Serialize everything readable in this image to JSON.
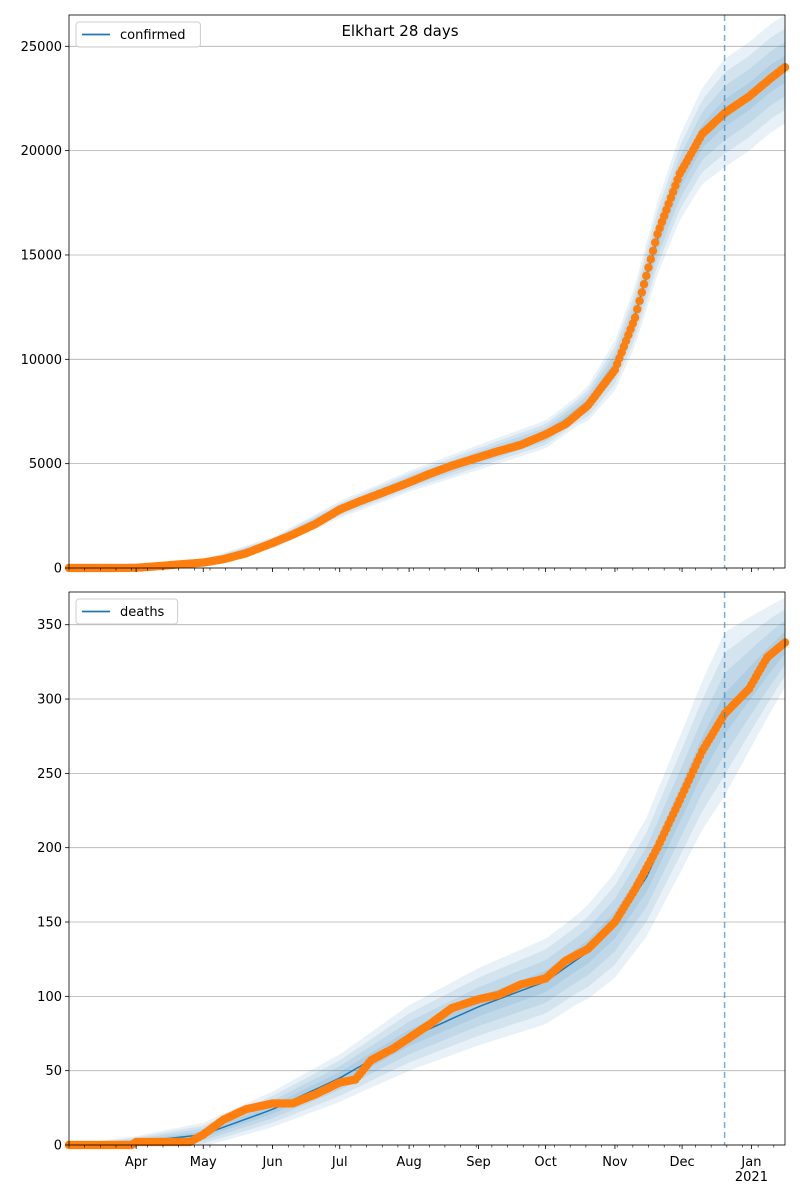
{
  "figure": {
    "title": "Elkhart 28 days"
  },
  "chart_data": [
    {
      "type": "line",
      "name": "confirmed-panel",
      "legend": [
        "confirmed"
      ],
      "legend_location": "upper-left",
      "grid": "y",
      "x_ticks": [
        "Apr",
        "May",
        "Jun",
        "Jul",
        "Aug",
        "Sep",
        "Oct",
        "Nov",
        "Dec",
        "Jan"
      ],
      "x_tick_labels_shown": false,
      "x_range": [
        "2020-03-02",
        "2021-01-16"
      ],
      "forecast_start": "2020-12-20",
      "ylim": [
        0,
        26500
      ],
      "y_ticks": [
        0,
        5000,
        10000,
        15000,
        20000,
        25000
      ],
      "observed": [
        [
          "2020-03-02",
          0
        ],
        [
          "2020-03-20",
          0
        ],
        [
          "2020-04-01",
          10
        ],
        [
          "2020-04-10",
          80
        ],
        [
          "2020-04-20",
          170
        ],
        [
          "2020-05-01",
          260
        ],
        [
          "2020-05-10",
          420
        ],
        [
          "2020-05-20",
          700
        ],
        [
          "2020-06-01",
          1200
        ],
        [
          "2020-06-10",
          1600
        ],
        [
          "2020-06-20",
          2100
        ],
        [
          "2020-07-01",
          2800
        ],
        [
          "2020-07-10",
          3200
        ],
        [
          "2020-07-20",
          3600
        ],
        [
          "2020-08-01",
          4100
        ],
        [
          "2020-08-10",
          4500
        ],
        [
          "2020-08-20",
          4900
        ],
        [
          "2020-09-01",
          5300
        ],
        [
          "2020-09-10",
          5600
        ],
        [
          "2020-09-20",
          5900
        ],
        [
          "2020-10-01",
          6400
        ],
        [
          "2020-10-10",
          6900
        ],
        [
          "2020-10-20",
          7800
        ],
        [
          "2020-11-01",
          9500
        ],
        [
          "2020-11-10",
          12000
        ],
        [
          "2020-11-20",
          16000
        ],
        [
          "2020-11-30",
          18900
        ],
        [
          "2020-12-10",
          20800
        ],
        [
          "2020-12-20",
          21800
        ],
        [
          "2020-12-31",
          22600
        ],
        [
          "2021-01-10",
          23500
        ],
        [
          "2021-01-16",
          24000
        ]
      ],
      "model_median": [
        [
          "2020-03-02",
          0
        ],
        [
          "2020-04-01",
          20
        ],
        [
          "2020-05-01",
          260
        ],
        [
          "2020-06-01",
          1200
        ],
        [
          "2020-07-01",
          2800
        ],
        [
          "2020-08-01",
          4150
        ],
        [
          "2020-09-01",
          5300
        ],
        [
          "2020-10-01",
          6400
        ],
        [
          "2020-10-20",
          7900
        ],
        [
          "2020-11-01",
          9700
        ],
        [
          "2020-11-10",
          12100
        ],
        [
          "2020-11-20",
          15800
        ],
        [
          "2020-11-30",
          18700
        ],
        [
          "2020-12-10",
          20700
        ],
        [
          "2020-12-20",
          21800
        ],
        [
          "2020-12-31",
          22600
        ],
        [
          "2021-01-10",
          23500
        ],
        [
          "2021-01-16",
          23900
        ]
      ],
      "band_outer_width": [
        [
          "2020-03-02",
          0
        ],
        [
          "2020-05-01",
          150
        ],
        [
          "2020-07-01",
          400
        ],
        [
          "2020-09-01",
          600
        ],
        [
          "2020-10-15",
          700
        ],
        [
          "2020-11-15",
          1600
        ],
        [
          "2020-12-10",
          2300
        ],
        [
          "2020-12-20",
          2600
        ],
        [
          "2021-01-16",
          2600
        ]
      ]
    },
    {
      "type": "line",
      "name": "deaths-panel",
      "legend": [
        "deaths"
      ],
      "legend_location": "upper-left",
      "grid": "y",
      "x_ticks": [
        "Apr",
        "May",
        "Jun",
        "Jul",
        "Aug",
        "Sep",
        "Oct",
        "Nov",
        "Dec",
        "Jan\n2021"
      ],
      "x_range": [
        "2020-03-02",
        "2021-01-16"
      ],
      "forecast_start": "2020-12-20",
      "ylim": [
        0,
        372
      ],
      "y_ticks": [
        0,
        50,
        100,
        150,
        200,
        250,
        300,
        350
      ],
      "observed": [
        [
          "2020-03-02",
          0
        ],
        [
          "2020-03-30",
          0
        ],
        [
          "2020-04-01",
          2
        ],
        [
          "2020-04-25",
          2
        ],
        [
          "2020-05-01",
          7
        ],
        [
          "2020-05-10",
          17
        ],
        [
          "2020-05-20",
          24
        ],
        [
          "2020-06-01",
          28
        ],
        [
          "2020-06-10",
          28
        ],
        [
          "2020-06-20",
          34
        ],
        [
          "2020-07-01",
          42
        ],
        [
          "2020-07-08",
          44
        ],
        [
          "2020-07-15",
          57
        ],
        [
          "2020-07-25",
          65
        ],
        [
          "2020-08-01",
          72
        ],
        [
          "2020-08-10",
          81
        ],
        [
          "2020-08-20",
          92
        ],
        [
          "2020-09-01",
          98
        ],
        [
          "2020-09-10",
          101
        ],
        [
          "2020-09-20",
          108
        ],
        [
          "2020-10-01",
          112
        ],
        [
          "2020-10-10",
          124
        ],
        [
          "2020-10-20",
          132
        ],
        [
          "2020-11-01",
          150
        ],
        [
          "2020-11-10",
          172
        ],
        [
          "2020-11-20",
          200
        ],
        [
          "2020-11-30",
          232
        ],
        [
          "2020-12-10",
          265
        ],
        [
          "2020-12-20",
          290
        ],
        [
          "2020-12-31",
          307
        ],
        [
          "2021-01-08",
          328
        ],
        [
          "2021-01-16",
          338
        ]
      ],
      "model_median": [
        [
          "2020-03-02",
          0
        ],
        [
          "2020-04-01",
          2
        ],
        [
          "2020-05-01",
          7
        ],
        [
          "2020-06-01",
          24
        ],
        [
          "2020-07-01",
          45
        ],
        [
          "2020-08-01",
          72
        ],
        [
          "2020-09-01",
          93
        ],
        [
          "2020-10-01",
          110
        ],
        [
          "2020-10-20",
          130
        ],
        [
          "2020-11-01",
          148
        ],
        [
          "2020-11-15",
          180
        ],
        [
          "2020-12-01",
          232
        ],
        [
          "2020-12-10",
          262
        ],
        [
          "2020-12-20",
          290
        ],
        [
          "2020-12-31",
          310
        ],
        [
          "2021-01-10",
          328
        ],
        [
          "2021-01-16",
          338
        ]
      ],
      "band_outer_width": [
        [
          "2020-03-02",
          0
        ],
        [
          "2020-05-01",
          8
        ],
        [
          "2020-06-01",
          12
        ],
        [
          "2020-07-01",
          16
        ],
        [
          "2020-08-01",
          22
        ],
        [
          "2020-09-01",
          26
        ],
        [
          "2020-10-15",
          30
        ],
        [
          "2020-11-15",
          40
        ],
        [
          "2020-12-10",
          50
        ],
        [
          "2020-12-20",
          55
        ],
        [
          "2021-01-16",
          30
        ]
      ]
    }
  ],
  "colors": {
    "line": "#1f77b4",
    "points": "#ff7f0e",
    "band": "#1f77b4",
    "grid": "#b0b0b0",
    "forecast_marker": "#1f77b4"
  }
}
